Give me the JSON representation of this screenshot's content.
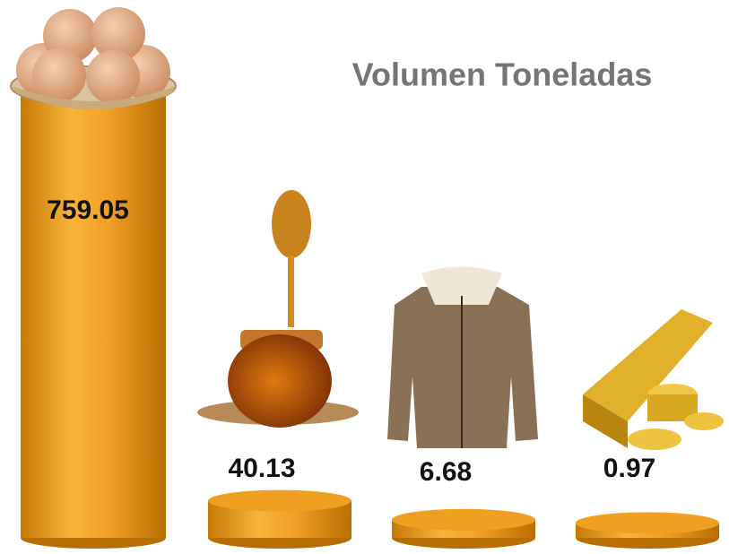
{
  "chart_data": {
    "type": "cylinder",
    "title": "Volumen Toneladas",
    "values": [
      759.05,
      40.13,
      6.68,
      0.97
    ],
    "color": "#f0a020"
  }
}
